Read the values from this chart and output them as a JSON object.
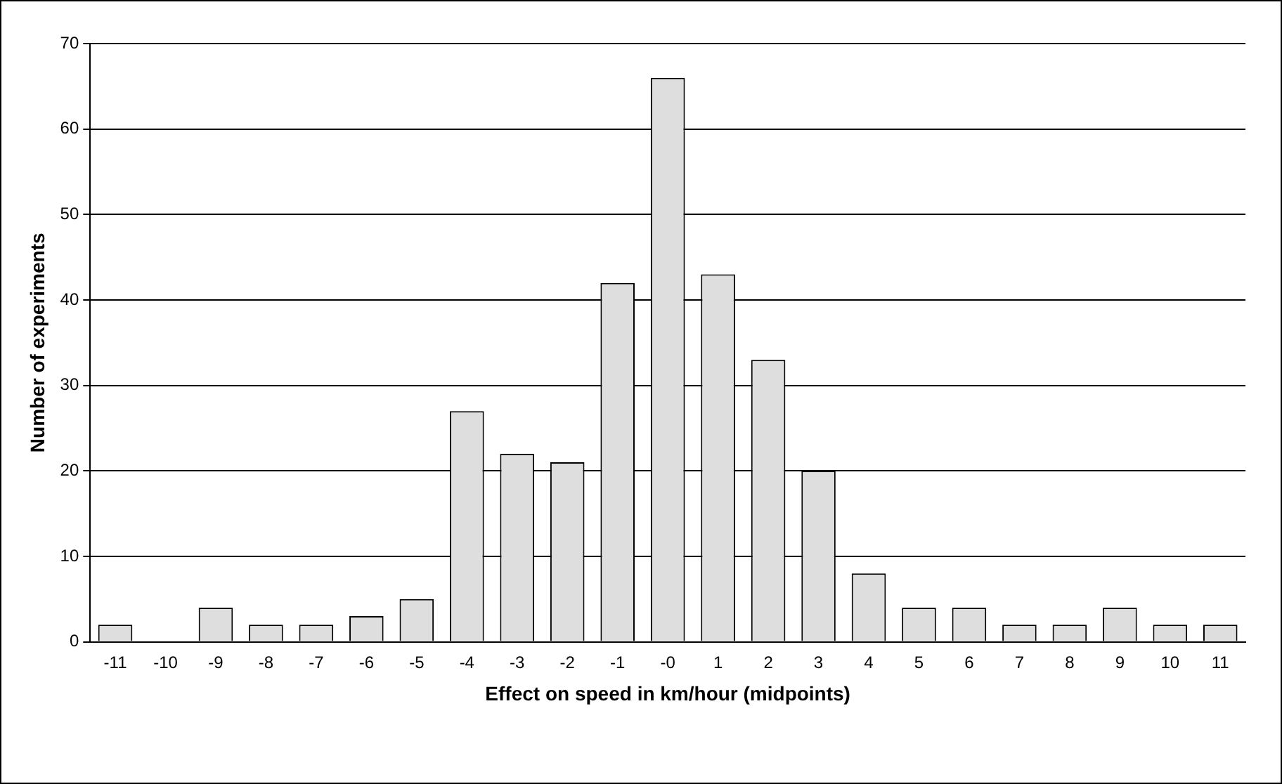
{
  "chart_data": {
    "type": "bar",
    "xlabel": "Effect on speed in km/hour (midpoints)",
    "ylabel": "Number of experiments",
    "categories": [
      "-11",
      "-10",
      "-9",
      "-8",
      "-7",
      "-6",
      "-5",
      "-4",
      "-3",
      "-2",
      "-1",
      "-0",
      "1",
      "2",
      "3",
      "4",
      "5",
      "6",
      "7",
      "8",
      "9",
      "10",
      "11"
    ],
    "series": [
      {
        "color": "#dedede",
        "values": [
          2,
          0,
          4,
          2,
          2,
          3,
          5,
          27,
          22,
          21,
          42,
          66,
          43,
          33,
          20,
          8,
          4,
          4,
          2,
          2,
          4,
          2,
          2
        ]
      }
    ],
    "ylim": [
      0,
      70
    ],
    "yticks": [
      0,
      10,
      20,
      30,
      40,
      50,
      60,
      70
    ],
    "grid": "y",
    "legend": false
  }
}
